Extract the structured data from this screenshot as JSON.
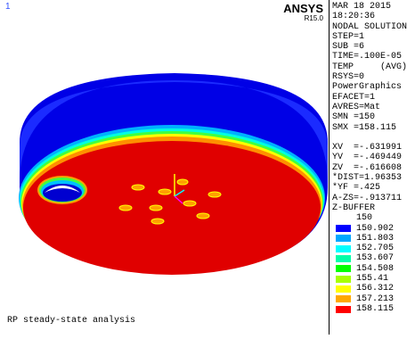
{
  "window_number": "1",
  "brand": {
    "name": "ANSYS",
    "release": "R15.0"
  },
  "info": [
    "MAR 18 2015",
    "18:20:36",
    "NODAL SOLUTION",
    "STEP=1",
    "SUB =6",
    "TIME=.100E-05",
    "TEMP     (AVG)",
    "RSYS=0",
    "PowerGraphics",
    "EFACET=1",
    "AVRES=Mat",
    "SMN =150",
    "SMX =158.115"
  ],
  "view": [
    "XV  =-.631991",
    "YV  =-.469449",
    "ZV  =-.616608",
    "*DIST=1.96353",
    "*YF =.425",
    "A-ZS=-.913711",
    "Z-BUFFER"
  ],
  "legend": {
    "min": "150",
    "levels": [
      {
        "label": "150.902",
        "color": "#0000ff"
      },
      {
        "label": "151.803",
        "color": "#00a8ff"
      },
      {
        "label": "152.705",
        "color": "#00ffff"
      },
      {
        "label": "153.607",
        "color": "#00ffa8"
      },
      {
        "label": "154.508",
        "color": "#00ff00"
      },
      {
        "label": "155.41",
        "color": "#a8ff00"
      },
      {
        "label": "156.312",
        "color": "#ffff00"
      },
      {
        "label": "157.213",
        "color": "#ffa800"
      },
      {
        "label": "158.115",
        "color": "#ff0000"
      }
    ]
  },
  "footer": "RP steady-state analysis"
}
